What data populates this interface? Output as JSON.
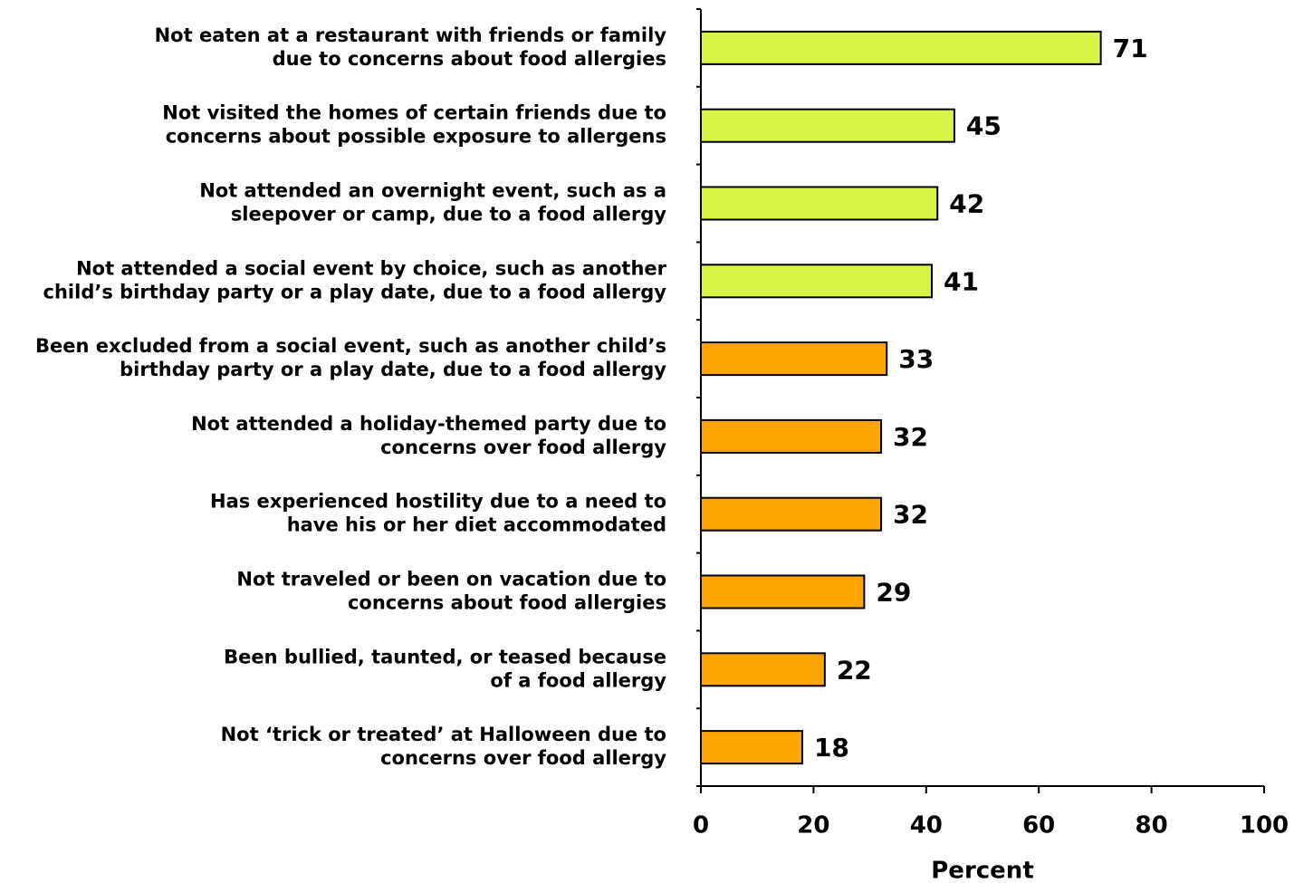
{
  "chart_data": {
    "type": "barh",
    "xlabel": "Percent",
    "categories": [
      [
        "Not eaten at a restaurant with friends or family",
        "due to concerns about food allergies"
      ],
      [
        "Not visited the homes of certain friends due to",
        "concerns about possible exposure to allergens"
      ],
      [
        "Not attended an overnight event, such as a",
        "sleepover or camp, due to a food allergy"
      ],
      [
        "Not attended a social event by choice, such as another",
        "child’s birthday party or a play date, due to a food allergy"
      ],
      [
        "Been excluded from a social event, such as another child’s",
        "birthday party or a play date, due to a food allergy"
      ],
      [
        "Not attended a holiday-themed party due to",
        "concerns over food allergy"
      ],
      [
        "Has experienced hostility due to a need to",
        "have his or her diet accommodated"
      ],
      [
        "Not traveled or been on vacation due to",
        "concerns about food allergies"
      ],
      [
        "Been bullied, taunted, or teased because",
        "of a food allergy"
      ],
      [
        "Not ‘trick or treated’ at Halloween due to",
        "concerns over food allergy"
      ]
    ],
    "values": [
      71,
      45,
      42,
      41,
      33,
      32,
      32,
      29,
      22,
      18
    ],
    "colors": [
      "#d7f545",
      "#d7f545",
      "#d7f545",
      "#d7f545",
      "#ffa500",
      "#ffa500",
      "#ffa500",
      "#ffa500",
      "#ffa500",
      "#ffa500"
    ],
    "xlim": [
      0,
      100
    ],
    "xticks": [
      0,
      20,
      40,
      60,
      80,
      100
    ]
  }
}
